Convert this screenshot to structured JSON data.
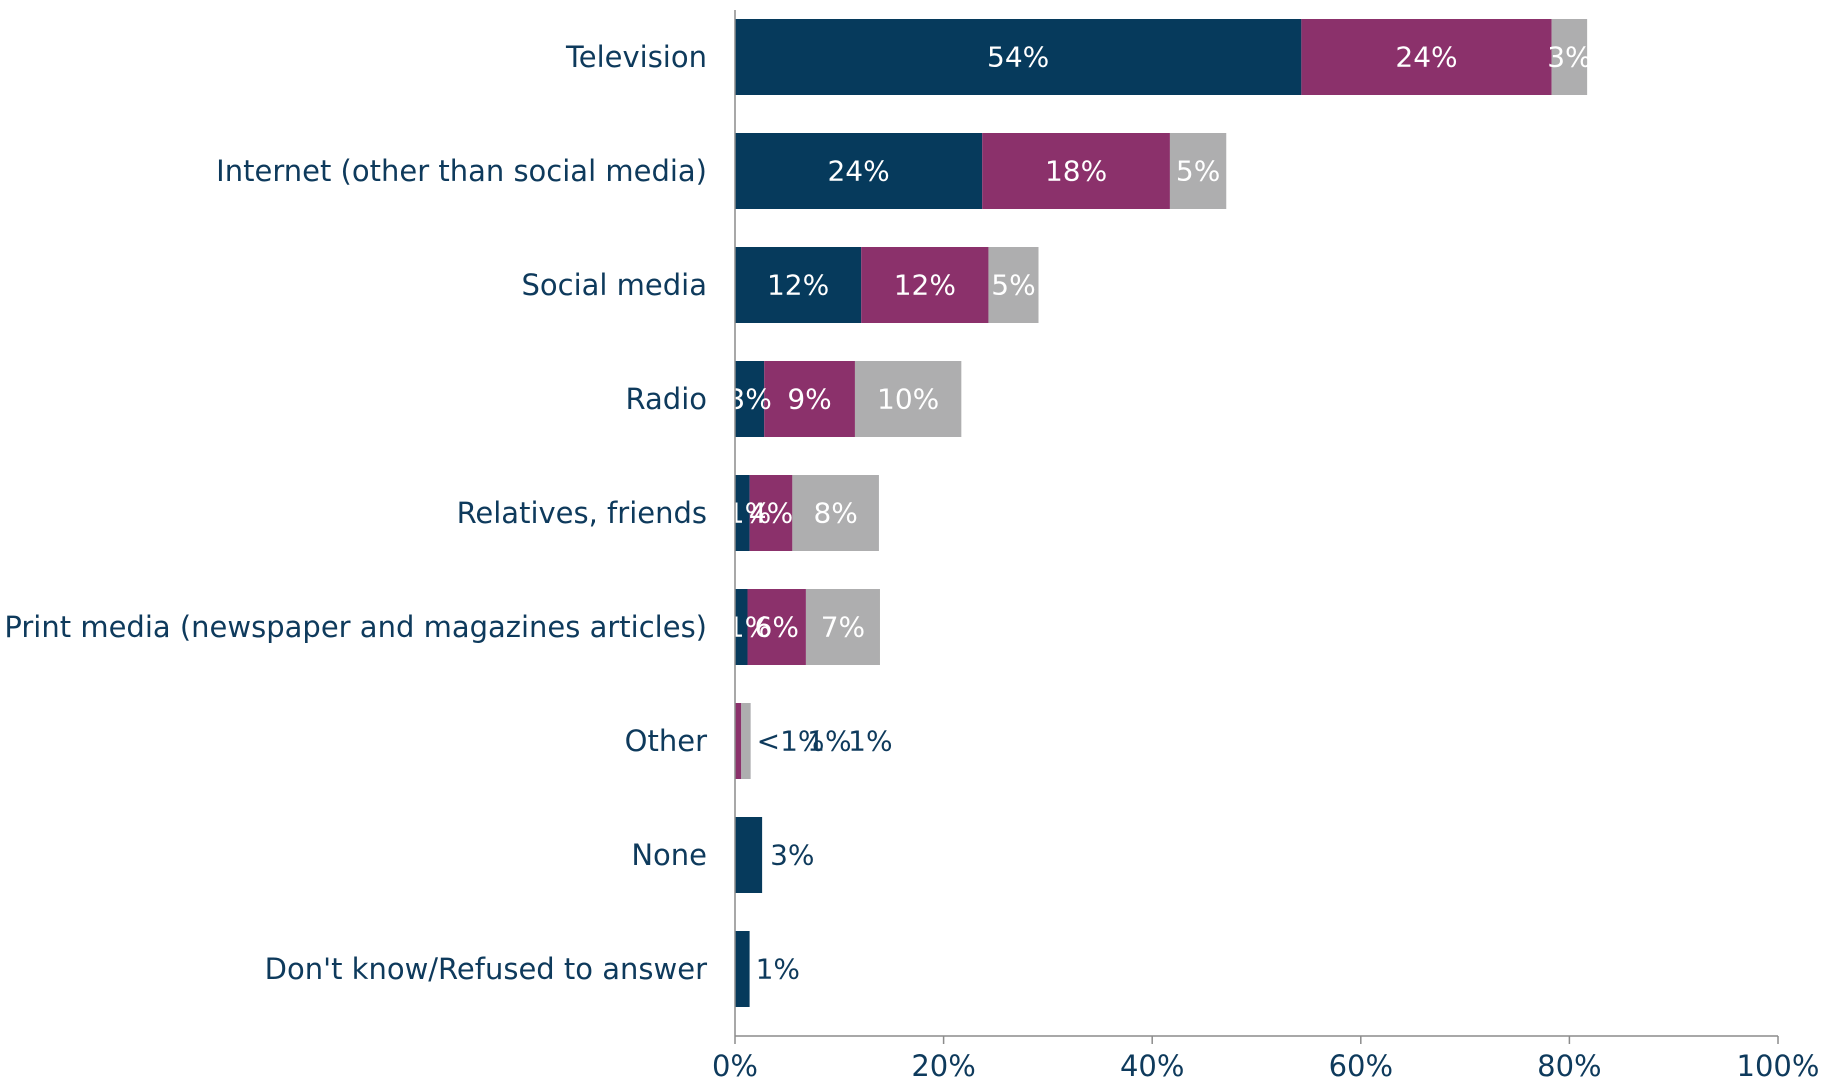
{
  "chart_data": {
    "type": "bar",
    "orientation": "horizontal",
    "stacked": true,
    "categories": [
      "Television",
      "Internet (other than social media)",
      "Social media",
      "Radio",
      "Relatives, friends",
      "Print media (newspaper and magazines articles)",
      "Other",
      "None",
      "Don't know/Refused to answer"
    ],
    "series": [
      {
        "color": "#063a5c",
        "values": [
          54.3,
          23.7,
          12.1,
          2.8,
          1.4,
          1.2,
          0,
          2.6,
          1.4
        ],
        "labels": [
          "54%",
          "24%",
          "12%",
          "3%",
          "1%",
          "1%",
          "",
          "3%",
          "1%"
        ]
      },
      {
        "color": "#8b316b",
        "values": [
          24.0,
          18.0,
          12.2,
          8.7,
          4.1,
          5.6,
          0.6,
          0,
          0
        ],
        "labels": [
          "24%",
          "18%",
          "12%",
          "9%",
          "4%",
          "6%",
          "<1%",
          "",
          ""
        ]
      },
      {
        "color": "#aeaeaf",
        "values": [
          3.4,
          5.4,
          4.8,
          10.2,
          8.3,
          7.1,
          0.9,
          0,
          0
        ],
        "labels": [
          "3%",
          "5%",
          "5%",
          "10%",
          "8%",
          "7%",
          "1%",
          "",
          ""
        ]
      }
    ],
    "totals": [
      "",
      "",
      "",
      "",
      "",
      "",
      "1%",
      "",
      ""
    ],
    "xlim": [
      0,
      100
    ],
    "xticks": [
      0,
      20,
      40,
      60,
      80,
      100
    ],
    "xtick_labels": [
      "0%",
      "20%",
      "40%",
      "60%",
      "80%",
      "100%"
    ],
    "grid": false,
    "legend": "none"
  }
}
